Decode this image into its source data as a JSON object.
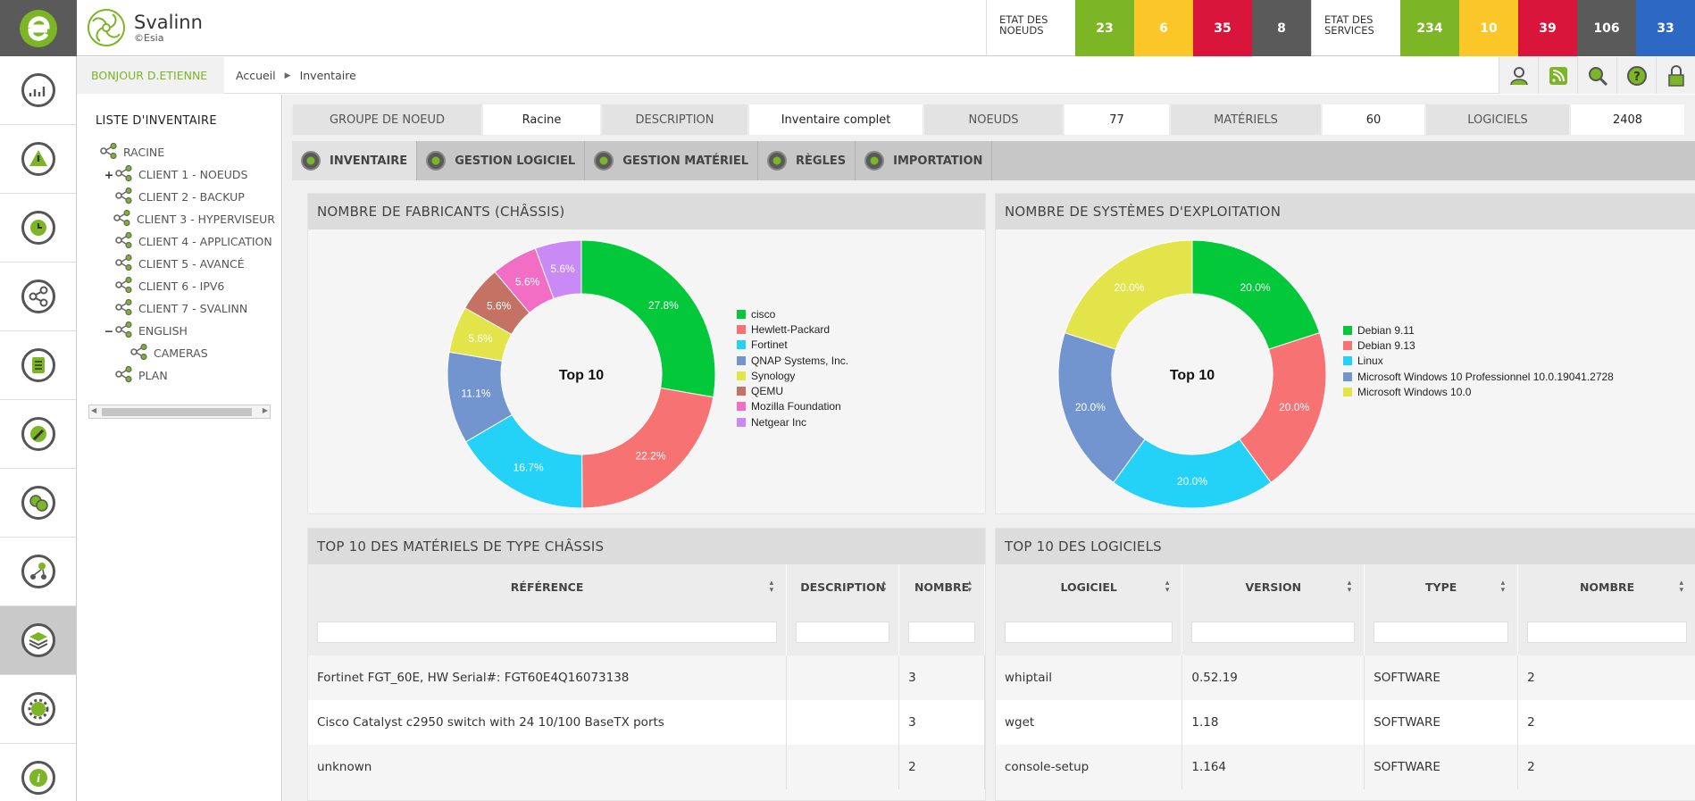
{
  "brand": {
    "name": "Svalinn",
    "sub": "©Esia"
  },
  "status": {
    "nodes_label": "ETAT DES NOEUDS",
    "nodes": [
      {
        "value": "23",
        "color": "#7cb526"
      },
      {
        "value": "6",
        "color": "#fbc627"
      },
      {
        "value": "35",
        "color": "#d9153b"
      },
      {
        "value": "8",
        "color": "#5a5a5a"
      }
    ],
    "services_label": "ETAT DES SERVICES",
    "services": [
      {
        "value": "234",
        "color": "#7cb526"
      },
      {
        "value": "10",
        "color": "#fbc627"
      },
      {
        "value": "39",
        "color": "#d9153b"
      },
      {
        "value": "106",
        "color": "#5a5a5a"
      },
      {
        "value": "33",
        "color": "#2d68c4"
      }
    ]
  },
  "greeting": "BONJOUR D.ETIENNE",
  "breadcrumb": {
    "home": "Accueil",
    "current": "Inventaire"
  },
  "toolbar_icons": [
    "user-icon",
    "rss-icon",
    "search-icon",
    "help-icon",
    "lock-icon"
  ],
  "leftbar_icons": [
    "dashboard-icon",
    "alert-icon",
    "history-icon",
    "share-icon",
    "report-icon",
    "satellite-icon",
    "users-icon",
    "workflow-icon",
    "inventory-icon",
    "settings-icon",
    "info-icon"
  ],
  "sidebar": {
    "title": "LISTE D'INVENTAIRE",
    "tree": [
      {
        "label": "RACINE",
        "level": 0,
        "toggle": ""
      },
      {
        "label": "CLIENT 1 - NOEUDS",
        "level": 1,
        "toggle": "+"
      },
      {
        "label": "CLIENT 2 - BACKUP",
        "level": 1,
        "toggle": ""
      },
      {
        "label": "CLIENT 3 - HYPERVISEUR",
        "level": 1,
        "toggle": ""
      },
      {
        "label": "CLIENT 4 - APPLICATION",
        "level": 1,
        "toggle": ""
      },
      {
        "label": "CLIENT 5 - AVANCÉ",
        "level": 1,
        "toggle": ""
      },
      {
        "label": "CLIENT 6 - IPV6",
        "level": 1,
        "toggle": ""
      },
      {
        "label": "CLIENT 7 - SVALINN",
        "level": 1,
        "toggle": ""
      },
      {
        "label": "ENGLISH",
        "level": 1,
        "toggle": "−"
      },
      {
        "label": "CAMERAS",
        "level": 2,
        "toggle": ""
      },
      {
        "label": "PLAN",
        "level": 1,
        "toggle": ""
      }
    ]
  },
  "infobar": [
    {
      "label": "GROUPE DE NOEUD",
      "value": "Racine"
    },
    {
      "label": "DESCRIPTION",
      "value": "Inventaire complet"
    },
    {
      "label": "NOEUDS",
      "value": "77"
    },
    {
      "label": "MATÉRIELS",
      "value": "60"
    },
    {
      "label": "LOGICIELS",
      "value": "2408"
    }
  ],
  "tabs": [
    "INVENTAIRE",
    "GESTION LOGICIEL",
    "GESTION MATÉRIEL",
    "RÈGLES",
    "IMPORTATION"
  ],
  "panels": {
    "manufacturers_title": "NOMBRE DE FABRICANTS (CHÂSSIS)",
    "os_title": "NOMBRE DE SYSTÈMES D'EXPLOITATION",
    "hardware_title": "TOP 10 DES MATÉRIELS DE TYPE CHÂSSIS",
    "software_title": "TOP 10 DES LOGICIELS"
  },
  "chart_data": [
    {
      "type": "pie",
      "center_label": "Top 10",
      "categories": [
        "cisco",
        "Hewlett-Packard",
        "Fortinet",
        "QNAP Systems, Inc.",
        "Synology",
        "QEMU",
        "Mozilla Foundation",
        "Netgear Inc"
      ],
      "values": [
        27.8,
        22.2,
        16.7,
        11.1,
        5.6,
        5.6,
        5.6,
        5.6
      ],
      "labels": [
        "27.8%",
        "22.2%",
        "16.7%",
        "11.1%",
        "5.6%",
        "5.6%",
        "5.6%",
        "5.6%"
      ],
      "colors": [
        "#03c93a",
        "#f77272",
        "#24d1f7",
        "#7395cf",
        "#e3e34a",
        "#c47264",
        "#f26dc4",
        "#c98af5"
      ],
      "legend": "right"
    },
    {
      "type": "pie",
      "center_label": "Top 10",
      "categories": [
        "Debian 9.11",
        "Debian 9.13",
        "Linux",
        "Microsoft Windows 10 Professionnel 10.0.19041.2728",
        "Microsoft Windows 10.0"
      ],
      "values": [
        20.0,
        20.0,
        20.0,
        20.0,
        20.0
      ],
      "labels": [
        "20.0%",
        "20.0%",
        "20.0%",
        "20.0%",
        "20.0%"
      ],
      "colors": [
        "#03c93a",
        "#f77272",
        "#24d1f7",
        "#7395cf",
        "#e3e34a"
      ],
      "legend": "right"
    }
  ],
  "hardware_table": {
    "headers": [
      "RÉFÉRENCE",
      "DESCRIPTION",
      "NOMBRE"
    ],
    "rows": [
      [
        "Fortinet FGT_60E, HW Serial#: FGT60E4Q16073138",
        "",
        "3"
      ],
      [
        "Cisco Catalyst c2950 switch with 24 10/100 BaseTX ports",
        "",
        "3"
      ],
      [
        "unknown",
        "",
        "2"
      ]
    ]
  },
  "software_table": {
    "headers": [
      "LOGICIEL",
      "VERSION",
      "TYPE",
      "NOMBRE"
    ],
    "rows": [
      [
        "whiptail",
        "0.52.19",
        "SOFTWARE",
        "2"
      ],
      [
        "wget",
        "1.18",
        "SOFTWARE",
        "2"
      ],
      [
        "console-setup",
        "1.164",
        "SOFTWARE",
        "2"
      ]
    ]
  }
}
